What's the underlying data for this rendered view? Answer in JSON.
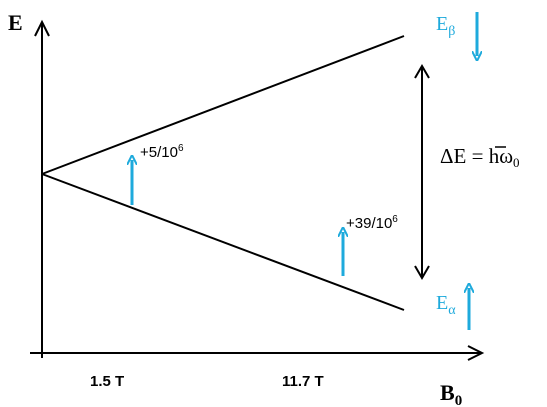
{
  "axes": {
    "y_label": "E",
    "x_label_main": "B",
    "x_label_sub": "0",
    "ticks": [
      "1.5 T",
      "11.7 T"
    ]
  },
  "energy_levels": {
    "upper": {
      "label_main": "E",
      "label_sub": "β",
      "spin": "down"
    },
    "lower": {
      "label_main": "E",
      "label_sub": "α",
      "spin": "up"
    }
  },
  "annotations": {
    "diff_1_5T": {
      "prefix": "+5/10",
      "exp": "6"
    },
    "diff_11_7T": {
      "prefix": "+39/10",
      "exp": "6"
    }
  },
  "gap_formula": {
    "lhs": "ΔE = ",
    "hbar": "h",
    "omega": "ω",
    "omega_sub": "0"
  },
  "colors": {
    "accent": "#1eaadc",
    "line": "#000000"
  },
  "icons": [
    "spin-up-arrow-icon",
    "spin-down-arrow-icon",
    "double-headed-arrow-icon"
  ]
}
